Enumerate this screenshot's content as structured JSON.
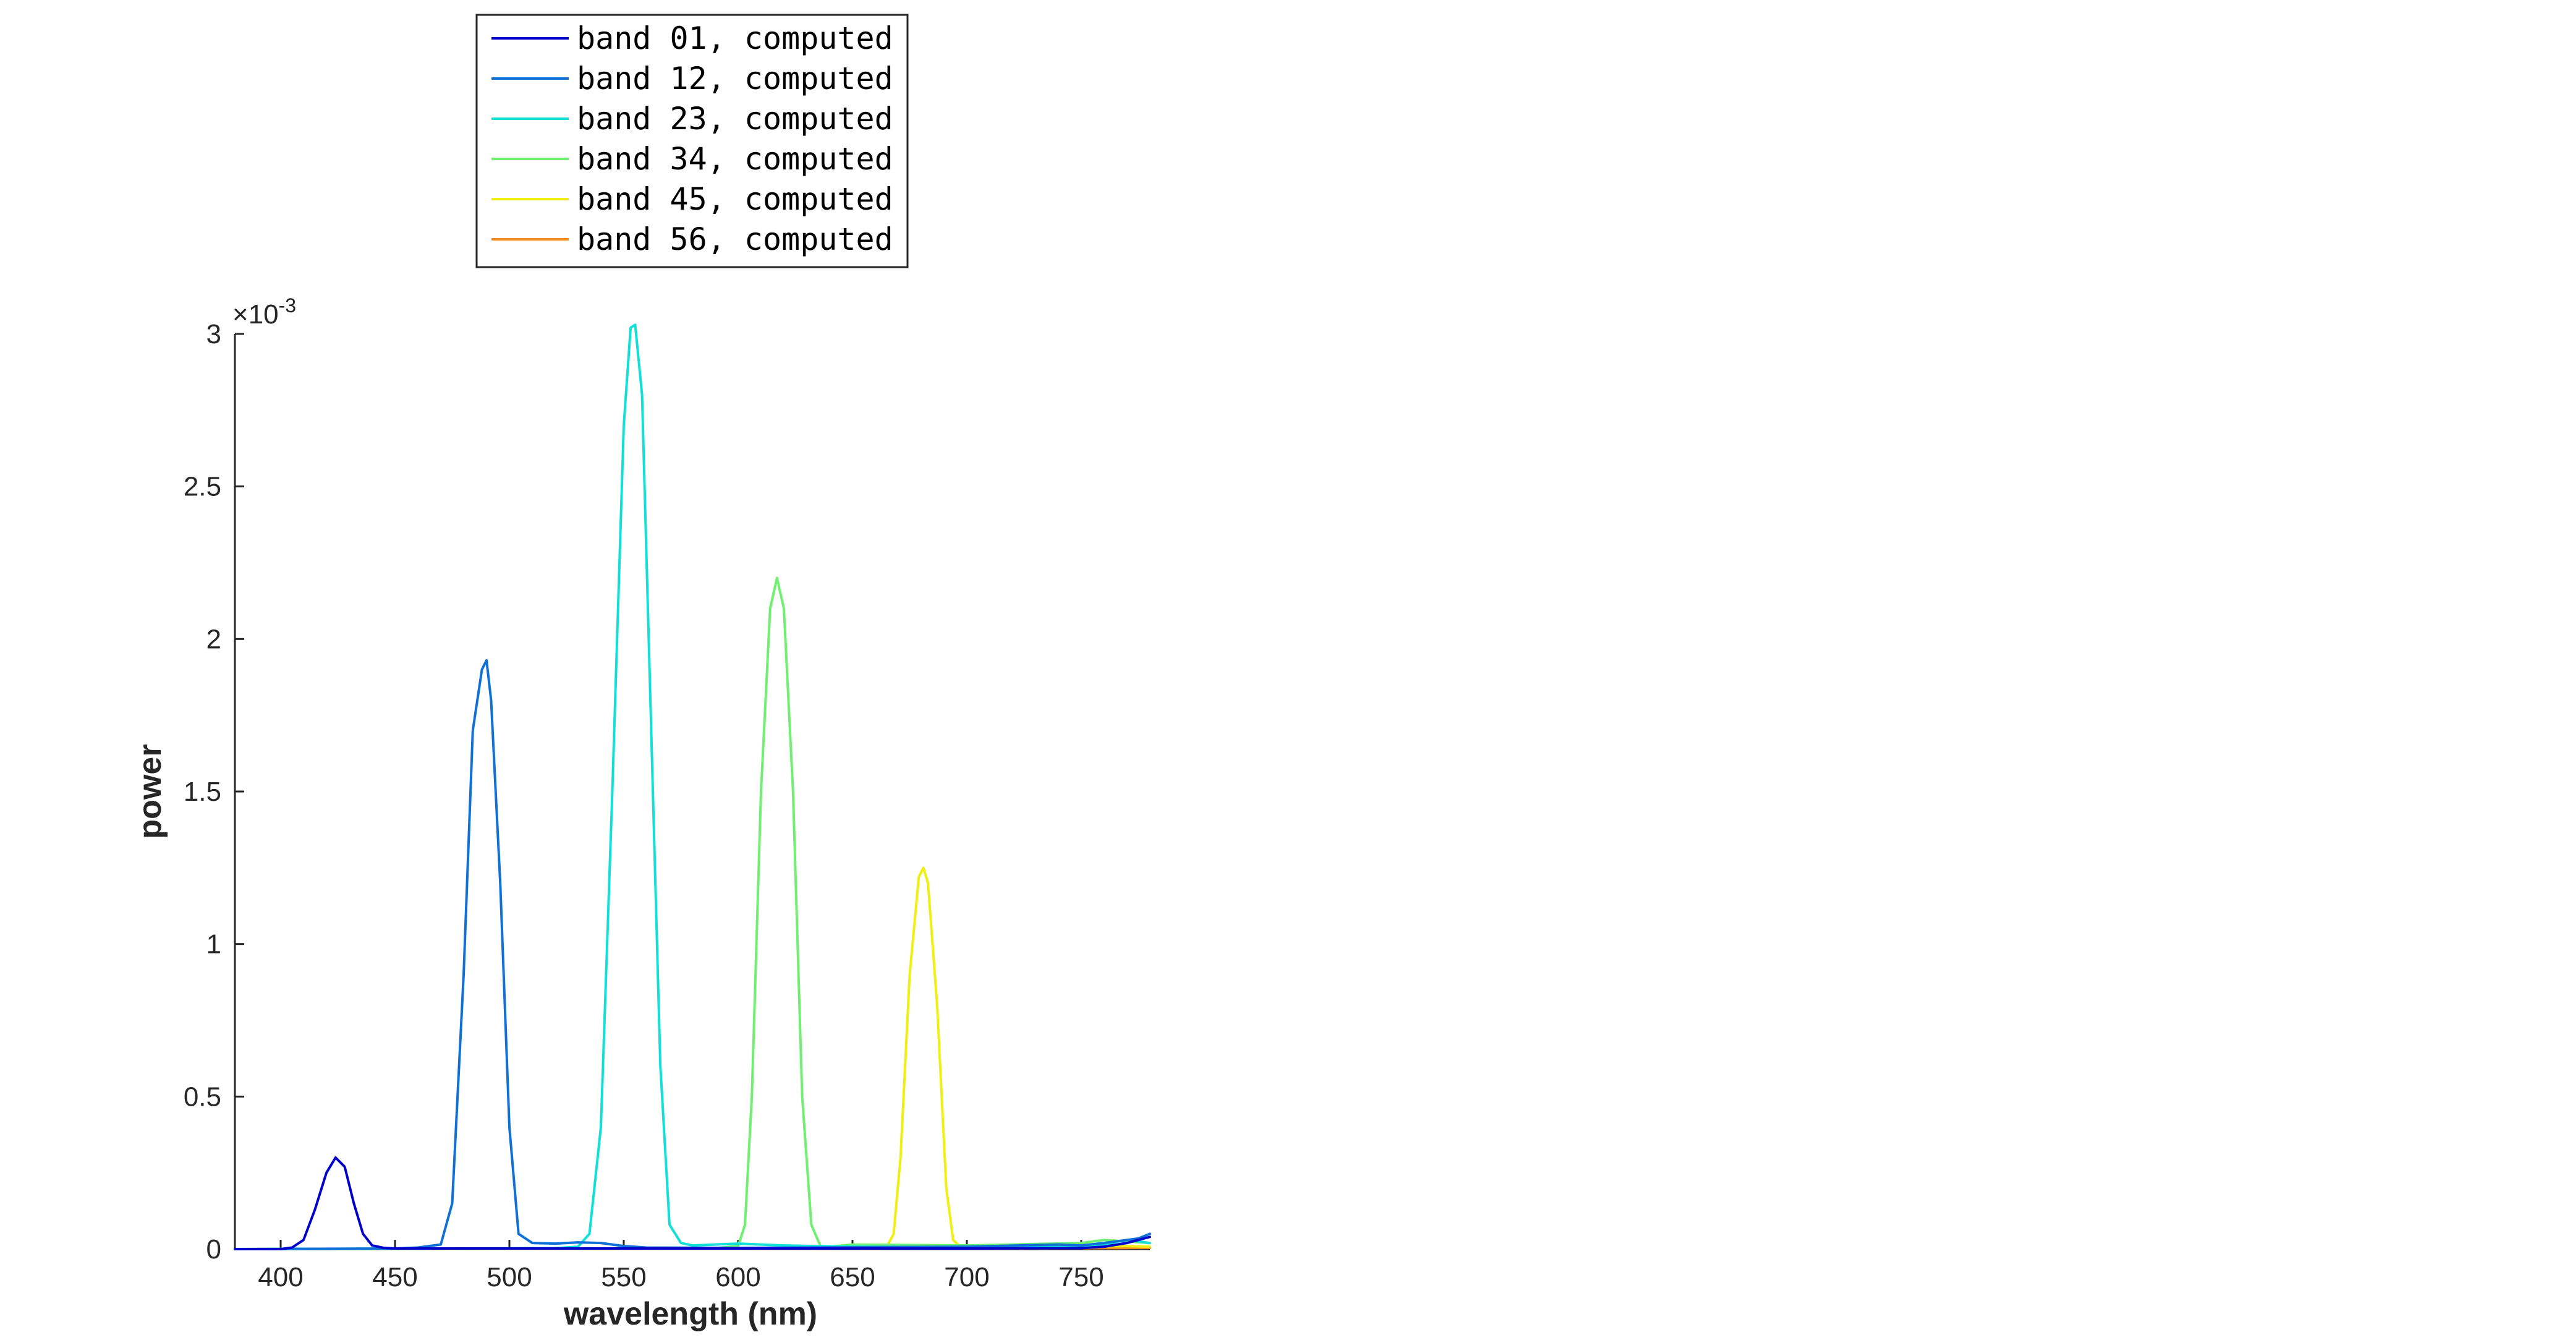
{
  "chart_data": {
    "type": "line",
    "title": "",
    "xlabel": "wavelength (nm)",
    "ylabel": "power",
    "xlim": [
      380,
      780
    ],
    "ylim": [
      0,
      0.003
    ],
    "y_exponent_label": "×10",
    "y_exponent_power": "-3",
    "xticks": [
      400,
      450,
      500,
      550,
      600,
      650,
      700,
      750
    ],
    "xtick_labels": [
      "400",
      "450",
      "500",
      "550",
      "600",
      "650",
      "700",
      "750"
    ],
    "yticks": [
      0,
      0.0005,
      0.001,
      0.0015,
      0.002,
      0.0025,
      0.003
    ],
    "ytick_labels": [
      "0",
      "0.5",
      "1",
      "1.5",
      "2",
      "2.5",
      "3"
    ],
    "grid": false,
    "legend_position": "top-center, outside plot",
    "series": [
      {
        "name": "band 01, computed",
        "color": "#0000cc",
        "x": [
          380,
          400,
          405,
          410,
          415,
          420,
          424,
          428,
          432,
          436,
          440,
          445,
          450,
          500,
          600,
          700,
          750,
          760,
          770,
          775,
          780
        ],
        "y": [
          0,
          0,
          5e-06,
          3e-05,
          0.00013,
          0.00025,
          0.0003,
          0.00027,
          0.00015,
          5e-05,
          1.2e-05,
          4e-06,
          2e-06,
          2e-06,
          2e-06,
          2e-06,
          3e-06,
          8e-06,
          2e-05,
          3e-05,
          4e-05
        ]
      },
      {
        "name": "band 12, computed",
        "color": "#0f70d8",
        "x": [
          380,
          450,
          460,
          470,
          475,
          480,
          484,
          488,
          490,
          492,
          496,
          500,
          504,
          510,
          520,
          530,
          540,
          550,
          560,
          600,
          650,
          700,
          740,
          750,
          760,
          770,
          775,
          780
        ],
        "y": [
          0,
          2e-06,
          5e-06,
          1.5e-05,
          0.00015,
          0.0009,
          0.0017,
          0.0019,
          0.00193,
          0.0018,
          0.0012,
          0.0004,
          5e-05,
          2e-05,
          1.8e-05,
          2.2e-05,
          2e-05,
          1e-05,
          5e-06,
          4e-06,
          6e-06,
          8e-06,
          1.5e-05,
          1.2e-05,
          2e-05,
          3e-05,
          3.5e-05,
          5e-05
        ]
      },
      {
        "name": "band 23, computed",
        "color": "#10e0d8",
        "x": [
          380,
          520,
          530,
          535,
          540,
          545,
          550,
          553,
          555,
          558,
          562,
          566,
          570,
          575,
          580,
          600,
          620,
          650,
          700,
          750,
          760,
          770,
          780
        ],
        "y": [
          0,
          3e-06,
          8e-06,
          5e-05,
          0.0004,
          0.0015,
          0.0027,
          0.00302,
          0.00303,
          0.0028,
          0.0017,
          0.0006,
          8e-05,
          2e-05,
          1.2e-05,
          1.8e-05,
          1.2e-05,
          8e-06,
          6e-06,
          8e-06,
          1.5e-05,
          3e-05,
          2e-05
        ]
      },
      {
        "name": "band 34, computed",
        "color": "#70f070",
        "x": [
          380,
          590,
          600,
          603,
          606,
          610,
          614,
          617,
          620,
          624,
          628,
          632,
          636,
          640,
          650,
          700,
          750,
          760,
          770,
          780
        ],
        "y": [
          0,
          3e-06,
          1e-05,
          8e-05,
          0.0005,
          0.0015,
          0.0021,
          0.0022,
          0.0021,
          0.0015,
          0.0005,
          8e-05,
          1e-05,
          8e-06,
          1.5e-05,
          1.2e-05,
          2e-05,
          3e-05,
          2.5e-05,
          2e-05
        ]
      },
      {
        "name": "band 45, computed",
        "color": "#f0f010",
        "x": [
          380,
          660,
          665,
          668,
          671,
          675,
          679,
          681,
          683,
          687,
          691,
          694,
          697,
          700,
          720,
          750,
          770,
          780
        ],
        "y": [
          0,
          3e-06,
          8e-06,
          5e-05,
          0.0003,
          0.0009,
          0.00122,
          0.00125,
          0.0012,
          0.0008,
          0.0002,
          3e-05,
          8e-06,
          5e-06,
          6e-06,
          8e-06,
          1e-05,
          8e-06
        ]
      },
      {
        "name": "band 56, computed",
        "color": "#f58c1e",
        "x": [
          380,
          500,
          600,
          700,
          750,
          780
        ],
        "y": [
          0,
          1e-06,
          1e-06,
          2e-06,
          3e-06,
          4e-06
        ]
      }
    ]
  }
}
